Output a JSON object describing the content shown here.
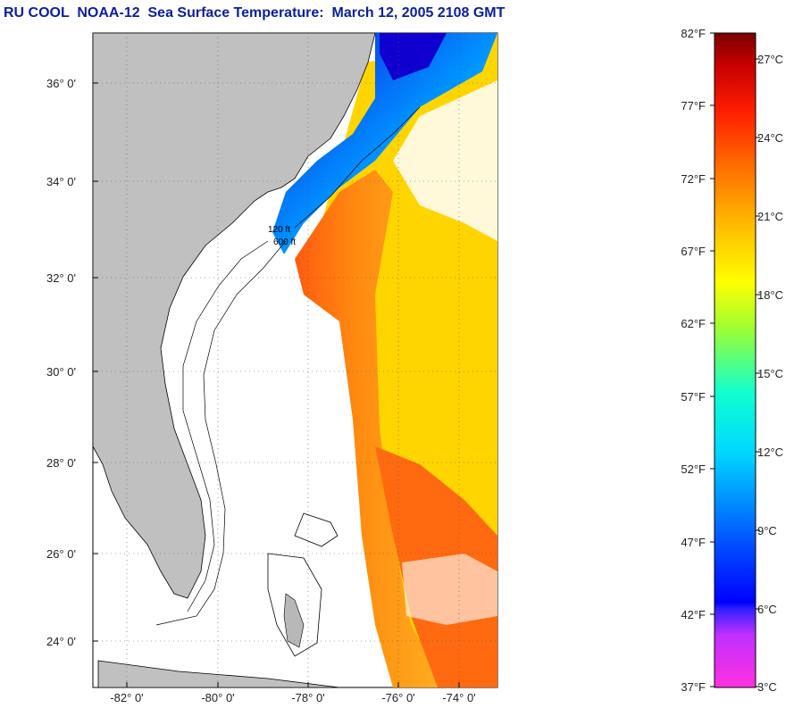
{
  "title": "RU COOL  NOAA-12  Sea Surface Temperature:  March 12, 2005 2108 GMT",
  "map": {
    "lat_labels": [
      "36° 0'",
      "34° 0'",
      "32° 0'",
      "30° 0'",
      "28° 0'",
      "26° 0'",
      "24° 0'"
    ],
    "lon_labels": [
      "-82° 0'",
      "-80° 0'",
      "-78° 0'",
      "-76° 0'",
      "-74° 0'"
    ],
    "depth_contours": [
      "120 ft",
      "600 ft"
    ],
    "land_color": "#c0c0c0"
  },
  "colorbar": {
    "fahrenheit": [
      "82°F",
      "77°F",
      "72°F",
      "67°F",
      "62°F",
      "57°F",
      "52°F",
      "47°F",
      "42°F",
      "37°F"
    ],
    "celsius": [
      "27°C",
      "24°C",
      "21°C",
      "18°C",
      "15°C",
      "12°C",
      "9°C",
      "6°C",
      "3°C"
    ]
  }
}
